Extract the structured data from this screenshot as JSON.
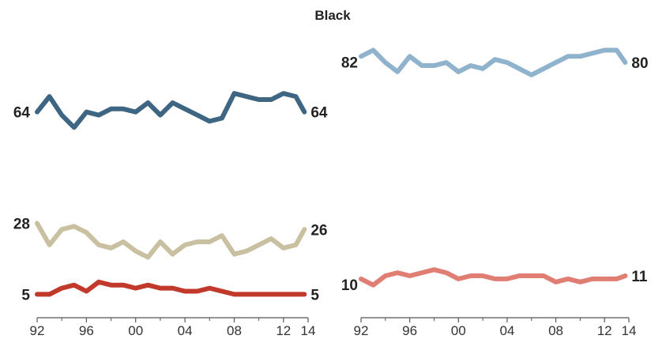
{
  "title": "Black",
  "colors": {
    "dark_blue": "#3e6683",
    "light_blue": "#8fb2cd",
    "tan": "#c9c0a2",
    "dark_red": "#c0392b",
    "salmon": "#e07e74",
    "axis": "#555555"
  },
  "chart_data": [
    {
      "type": "line",
      "xlabel": "",
      "ylabel": "",
      "x_ticks": [
        "92",
        "96",
        "00",
        "04",
        "08",
        "12",
        "14"
      ],
      "xlim": [
        1992,
        2014
      ],
      "ylim": [
        0,
        90
      ],
      "grid": false,
      "series": [
        {
          "color": "#3e6683",
          "start_label": "64",
          "end_label": "64",
          "points": [
            [
              1992,
              64
            ],
            [
              1993,
              69
            ],
            [
              1994,
              63
            ],
            [
              1995,
              59
            ],
            [
              1996,
              64
            ],
            [
              1997,
              63
            ],
            [
              1998,
              65
            ],
            [
              1999,
              65
            ],
            [
              2000,
              64
            ],
            [
              2001,
              67
            ],
            [
              2002,
              63
            ],
            [
              2003,
              67
            ],
            [
              2004,
              65
            ],
            [
              2005,
              63
            ],
            [
              2006,
              61
            ],
            [
              2007,
              62
            ],
            [
              2008,
              70
            ],
            [
              2009,
              69
            ],
            [
              2010,
              68
            ],
            [
              2011,
              68
            ],
            [
              2012,
              70
            ],
            [
              2013,
              69
            ],
            [
              2013.7,
              64
            ]
          ]
        },
        {
          "color": "#c9c0a2",
          "start_label": "28",
          "end_label": "26",
          "points": [
            [
              1992,
              28
            ],
            [
              1993,
              21
            ],
            [
              1994,
              26
            ],
            [
              1995,
              27
            ],
            [
              1996,
              25
            ],
            [
              1997,
              21
            ],
            [
              1998,
              20
            ],
            [
              1999,
              22
            ],
            [
              2000,
              19
            ],
            [
              2001,
              17
            ],
            [
              2002,
              22
            ],
            [
              2003,
              18
            ],
            [
              2004,
              21
            ],
            [
              2005,
              22
            ],
            [
              2006,
              22
            ],
            [
              2007,
              24
            ],
            [
              2008,
              18
            ],
            [
              2009,
              19
            ],
            [
              2010,
              21
            ],
            [
              2011,
              23
            ],
            [
              2012,
              20
            ],
            [
              2013,
              21
            ],
            [
              2013.7,
              26
            ]
          ]
        },
        {
          "color": "#c0392b",
          "start_label": "5",
          "end_label": "5",
          "points": [
            [
              1992,
              5
            ],
            [
              1993,
              5
            ],
            [
              1994,
              7
            ],
            [
              1995,
              8
            ],
            [
              1996,
              6
            ],
            [
              1997,
              9
            ],
            [
              1998,
              8
            ],
            [
              1999,
              8
            ],
            [
              2000,
              7
            ],
            [
              2001,
              8
            ],
            [
              2002,
              7
            ],
            [
              2003,
              7
            ],
            [
              2004,
              6
            ],
            [
              2005,
              6
            ],
            [
              2006,
              7
            ],
            [
              2007,
              6
            ],
            [
              2008,
              5
            ],
            [
              2009,
              5
            ],
            [
              2010,
              5
            ],
            [
              2011,
              5
            ],
            [
              2012,
              5
            ],
            [
              2013,
              5
            ],
            [
              2013.7,
              5
            ]
          ]
        }
      ]
    },
    {
      "type": "line",
      "xlabel": "",
      "ylabel": "",
      "x_ticks": [
        "92",
        "96",
        "00",
        "04",
        "08",
        "12",
        "14"
      ],
      "xlim": [
        1992,
        2014
      ],
      "ylim": [
        0,
        90
      ],
      "grid": false,
      "series": [
        {
          "color": "#8fb2cd",
          "start_label": "82",
          "end_label": "80",
          "points": [
            [
              1992,
              82
            ],
            [
              1993,
              84
            ],
            [
              1994,
              80
            ],
            [
              1995,
              77
            ],
            [
              1996,
              82
            ],
            [
              1997,
              79
            ],
            [
              1998,
              79
            ],
            [
              1999,
              80
            ],
            [
              2000,
              77
            ],
            [
              2001,
              79
            ],
            [
              2002,
              78
            ],
            [
              2003,
              81
            ],
            [
              2004,
              80
            ],
            [
              2005,
              78
            ],
            [
              2006,
              76
            ],
            [
              2007,
              78
            ],
            [
              2008,
              80
            ],
            [
              2009,
              82
            ],
            [
              2010,
              82
            ],
            [
              2011,
              83
            ],
            [
              2012,
              84
            ],
            [
              2013,
              84
            ],
            [
              2013.7,
              80
            ]
          ]
        },
        {
          "color": "#e07e74",
          "start_label": "10",
          "end_label": "11",
          "points": [
            [
              1992,
              10
            ],
            [
              1993,
              8
            ],
            [
              1994,
              11
            ],
            [
              1995,
              12
            ],
            [
              1996,
              11
            ],
            [
              1997,
              12
            ],
            [
              1998,
              13
            ],
            [
              1999,
              12
            ],
            [
              2000,
              10
            ],
            [
              2001,
              11
            ],
            [
              2002,
              11
            ],
            [
              2003,
              10
            ],
            [
              2004,
              10
            ],
            [
              2005,
              11
            ],
            [
              2006,
              11
            ],
            [
              2007,
              11
            ],
            [
              2008,
              9
            ],
            [
              2009,
              10
            ],
            [
              2010,
              9
            ],
            [
              2011,
              10
            ],
            [
              2012,
              10
            ],
            [
              2013,
              10
            ],
            [
              2013.7,
              11
            ]
          ]
        }
      ]
    }
  ]
}
